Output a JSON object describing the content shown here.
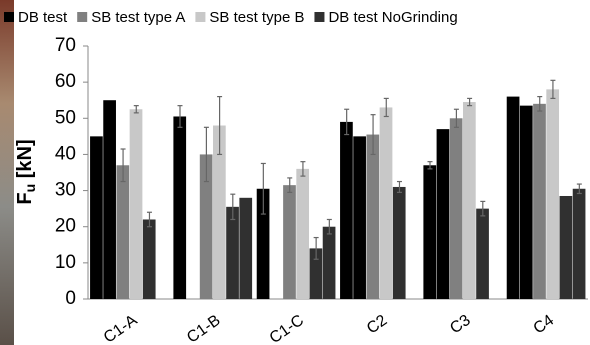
{
  "chart_data": {
    "type": "bar",
    "ylabel_parts": [
      "F",
      "u",
      " [kN]"
    ],
    "categories": [
      "C1-A",
      "C1-B",
      "C1-C",
      "C2",
      "C3",
      "C4"
    ],
    "series": [
      {
        "name": "DB test",
        "color": "#000000",
        "values": [
          45,
          50.5,
          30.5,
          49,
          37,
          56
        ],
        "errors": [
          null,
          3,
          7,
          3.5,
          1,
          null
        ]
      },
      {
        "color": "#000000",
        "values": [
          55,
          null,
          null,
          45,
          47,
          53.5
        ],
        "errors": [
          null,
          null,
          null,
          null,
          null,
          null
        ]
      },
      {
        "name": "SB test type A",
        "color": "#808080",
        "values": [
          37,
          40,
          31.5,
          45.5,
          50,
          54
        ],
        "errors": [
          4.5,
          7.5,
          2,
          5.5,
          2.5,
          2
        ]
      },
      {
        "name": "SB test type B",
        "color": "#c8c8c8",
        "values": [
          52.5,
          48,
          36,
          53,
          54.5,
          58
        ],
        "errors": [
          1,
          8,
          2,
          2.5,
          1,
          2.5
        ]
      },
      {
        "name": "DB test NoGrinding",
        "color": "#303030",
        "values": [
          22,
          25.5,
          14,
          31,
          25,
          28.5
        ],
        "errors": [
          2,
          3.5,
          3,
          1.5,
          2,
          null
        ]
      },
      {
        "color": "#303030",
        "values": [
          null,
          28,
          20,
          null,
          null,
          30.5
        ],
        "errors": [
          null,
          null,
          2,
          null,
          null,
          1.3
        ]
      }
    ],
    "ylim": [
      0,
      70
    ],
    "yticks": [
      0,
      10,
      20,
      30,
      40,
      50,
      60,
      70
    ],
    "grid": false
  }
}
